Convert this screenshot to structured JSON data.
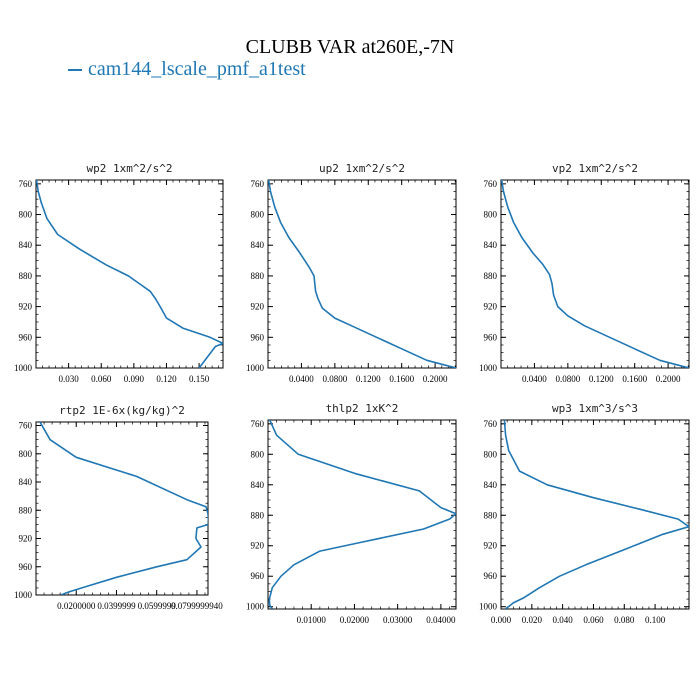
{
  "header": {
    "title": "CLUBB VAR at260E,-7N",
    "legend_label": "cam144_lscale_pmf_a1test",
    "series_color": "#1f77b4"
  },
  "chart_data": [
    {
      "type": "line",
      "title": "wp2   1xm^2/s^2",
      "series": [
        {
          "name": "cam144_lscale_pmf_a1test",
          "x": [
            0.0,
            0.002,
            0.005,
            0.01,
            0.02,
            0.04,
            0.065,
            0.085,
            0.095,
            0.105,
            0.11,
            0.115,
            0.12,
            0.135,
            0.16,
            0.172,
            0.165,
            0.15
          ],
          "y": [
            750,
            770,
            785,
            805,
            826,
            845,
            866,
            880,
            890,
            900,
            910,
            922,
            935,
            948,
            960,
            968,
            972,
            1000
          ]
        }
      ],
      "xticks": [
        0.03,
        0.06,
        0.09,
        0.12,
        0.15
      ],
      "xtick_labels": [
        "0.030",
        "0.060",
        "0.090",
        "0.120",
        "0.150"
      ],
      "xlim": [
        0.0,
        0.172
      ],
      "yticks": [
        760,
        800,
        840,
        880,
        920,
        960,
        1000
      ],
      "ylim": [
        755,
        1000
      ]
    },
    {
      "type": "line",
      "title": "up2   1xm^2/s^2",
      "series": [
        {
          "name": "cam144_lscale_pmf_a1test",
          "x": [
            0.0,
            0.003,
            0.008,
            0.015,
            0.025,
            0.038,
            0.05,
            0.055,
            0.057,
            0.06,
            0.065,
            0.08,
            0.1,
            0.13,
            0.16,
            0.19,
            0.225
          ],
          "y": [
            750,
            770,
            790,
            810,
            830,
            850,
            870,
            880,
            900,
            910,
            922,
            935,
            945,
            960,
            975,
            990,
            1000
          ]
        }
      ],
      "xticks": [
        0.04,
        0.08,
        0.12,
        0.16,
        0.2
      ],
      "xtick_labels": [
        "0.0400",
        "0.0800",
        "0.1200",
        "0.1600",
        "0.2000"
      ],
      "xlim": [
        0.0,
        0.225
      ],
      "yticks": [
        760,
        800,
        840,
        880,
        920,
        960,
        1000
      ],
      "ylim": [
        755,
        1000
      ]
    },
    {
      "type": "line",
      "title": "vp2   1xm^2/s^2",
      "series": [
        {
          "name": "cam144_lscale_pmf_a1test",
          "x": [
            0.0,
            0.003,
            0.008,
            0.015,
            0.025,
            0.038,
            0.05,
            0.058,
            0.061,
            0.063,
            0.068,
            0.08,
            0.1,
            0.13,
            0.16,
            0.19,
            0.225
          ],
          "y": [
            750,
            770,
            790,
            810,
            830,
            850,
            865,
            878,
            890,
            905,
            920,
            932,
            945,
            960,
            975,
            990,
            1000
          ]
        }
      ],
      "xticks": [
        0.04,
        0.08,
        0.12,
        0.16,
        0.2
      ],
      "xtick_labels": [
        "0.0400",
        "0.0800",
        "0.1200",
        "0.1600",
        "0.2000"
      ],
      "xlim": [
        0.0,
        0.225
      ],
      "yticks": [
        760,
        800,
        840,
        880,
        920,
        960,
        1000
      ],
      "ylim": [
        755,
        1000
      ]
    },
    {
      "type": "line",
      "title": "rtp2   1E-6x(kg/kg)^2",
      "series": [
        {
          "name": "cam144_lscale_pmf_a1test",
          "x": [
            0.001,
            0.007,
            0.02,
            0.05,
            0.075,
            0.0845,
            0.0855,
            0.0858,
            0.08,
            0.0795,
            0.082,
            0.075,
            0.06,
            0.04,
            0.025,
            0.017,
            0.015,
            0.0125
          ],
          "y": [
            750,
            780,
            805,
            832,
            865,
            875,
            885,
            900,
            905,
            920,
            932,
            950,
            960,
            975,
            988,
            995,
            997,
            1000
          ]
        }
      ],
      "xticks": [
        0.02,
        0.04,
        0.06,
        0.08
      ],
      "xtick_labels": [
        "0.0200000",
        "0.0399999",
        "0.0599999",
        "0.0799999940"
      ],
      "xlim": [
        0.0,
        0.0855
      ],
      "yticks": [
        760,
        800,
        840,
        880,
        920,
        960,
        1000
      ],
      "ylim": [
        755,
        1000
      ]
    },
    {
      "type": "line",
      "title": "thlp2   1xK^2",
      "series": [
        {
          "name": "cam144_lscale_pmf_a1test",
          "x": [
            0.0,
            0.002,
            0.007,
            0.02,
            0.035,
            0.04,
            0.0435,
            0.042,
            0.036,
            0.022,
            0.012,
            0.006,
            0.003,
            0.001,
            0.0003,
            0.0004,
            0.001
          ],
          "y": [
            750,
            775,
            800,
            825,
            848,
            870,
            878,
            885,
            898,
            915,
            927,
            945,
            960,
            975,
            990,
            998,
            1003
          ]
        }
      ],
      "xticks": [
        0.01,
        0.02,
        0.03,
        0.04
      ],
      "xtick_labels": [
        "0.01000",
        "0.02000",
        "0.03000",
        "0.04000"
      ],
      "xlim": [
        0.0,
        0.0435
      ],
      "yticks": [
        760,
        800,
        840,
        880,
        920,
        960,
        1000
      ],
      "ylim": [
        755,
        1003
      ]
    },
    {
      "type": "line",
      "title": "wp3   1xm^3/s^3",
      "series": [
        {
          "name": "cam144_lscale_pmf_a1test",
          "x": [
            0.002,
            0.003,
            0.005,
            0.012,
            0.03,
            0.06,
            0.09,
            0.115,
            0.122,
            0.105,
            0.08,
            0.055,
            0.038,
            0.025,
            0.015,
            0.008,
            0.003
          ],
          "y": [
            750,
            775,
            795,
            822,
            840,
            857,
            872,
            885,
            895,
            905,
            925,
            945,
            960,
            975,
            988,
            995,
            1003
          ]
        }
      ],
      "xticks": [
        0.0,
        0.02,
        0.04,
        0.06,
        0.08,
        0.1
      ],
      "xtick_labels": [
        "0.000",
        "0.020",
        "0.040",
        "0.060",
        "0.080",
        "0.100"
      ],
      "xlim": [
        0.0,
        0.122
      ],
      "yticks": [
        760,
        800,
        840,
        880,
        920,
        960,
        1000
      ],
      "ylim": [
        755,
        1003
      ]
    }
  ]
}
